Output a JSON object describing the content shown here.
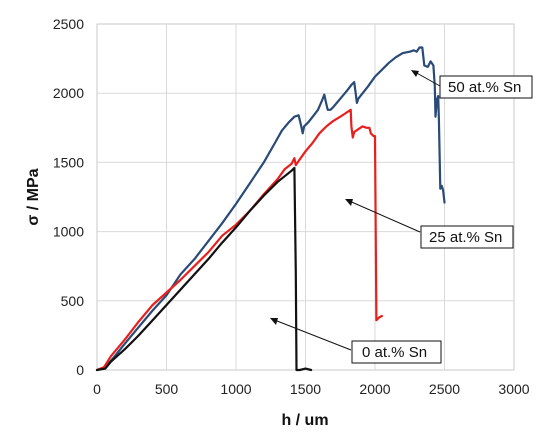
{
  "chart_data": {
    "type": "line",
    "title": "",
    "xlabel": "h / um",
    "ylabel": "σ / MPa",
    "xlim": [
      0,
      3000
    ],
    "ylim": [
      0,
      2500
    ],
    "x_ticks": [
      0,
      500,
      1000,
      1500,
      2000,
      2500,
      3000
    ],
    "y_ticks": [
      0,
      500,
      1000,
      1500,
      2000,
      2500
    ],
    "grid": true,
    "legend": "none",
    "series": [
      {
        "name": "50 at.% Sn",
        "color": "#2a4a78",
        "points": [
          [
            0,
            0
          ],
          [
            60,
            20
          ],
          [
            120,
            90
          ],
          [
            200,
            190
          ],
          [
            300,
            310
          ],
          [
            400,
            430
          ],
          [
            500,
            540
          ],
          [
            600,
            690
          ],
          [
            700,
            800
          ],
          [
            800,
            930
          ],
          [
            900,
            1060
          ],
          [
            1000,
            1200
          ],
          [
            1100,
            1350
          ],
          [
            1200,
            1500
          ],
          [
            1280,
            1640
          ],
          [
            1330,
            1730
          ],
          [
            1380,
            1790
          ],
          [
            1420,
            1830
          ],
          [
            1450,
            1840
          ],
          [
            1470,
            1760
          ],
          [
            1480,
            1710
          ],
          [
            1490,
            1760
          ],
          [
            1520,
            1790
          ],
          [
            1560,
            1840
          ],
          [
            1590,
            1880
          ],
          [
            1620,
            1950
          ],
          [
            1635,
            1990
          ],
          [
            1650,
            1920
          ],
          [
            1660,
            1880
          ],
          [
            1680,
            1880
          ],
          [
            1700,
            1900
          ],
          [
            1750,
            1960
          ],
          [
            1800,
            2020
          ],
          [
            1830,
            2060
          ],
          [
            1850,
            2080
          ],
          [
            1860,
            2010
          ],
          [
            1870,
            1930
          ],
          [
            1880,
            1960
          ],
          [
            1950,
            2050
          ],
          [
            2000,
            2120
          ],
          [
            2100,
            2220
          ],
          [
            2150,
            2260
          ],
          [
            2200,
            2290
          ],
          [
            2250,
            2300
          ],
          [
            2280,
            2310
          ],
          [
            2300,
            2300
          ],
          [
            2320,
            2330
          ],
          [
            2340,
            2330
          ],
          [
            2355,
            2200
          ],
          [
            2380,
            2190
          ],
          [
            2400,
            2230
          ],
          [
            2420,
            2200
          ],
          [
            2430,
            2050
          ],
          [
            2435,
            1830
          ],
          [
            2445,
            1950
          ],
          [
            2455,
            1980
          ],
          [
            2460,
            1810
          ],
          [
            2470,
            1310
          ],
          [
            2480,
            1330
          ],
          [
            2490,
            1300
          ],
          [
            2500,
            1210
          ]
        ]
      },
      {
        "name": "25 at.% Sn",
        "color": "#e8201d",
        "points": [
          [
            0,
            0
          ],
          [
            50,
            20
          ],
          [
            100,
            100
          ],
          [
            200,
            220
          ],
          [
            300,
            350
          ],
          [
            400,
            470
          ],
          [
            500,
            560
          ],
          [
            600,
            650
          ],
          [
            700,
            750
          ],
          [
            800,
            850
          ],
          [
            900,
            970
          ],
          [
            1000,
            1050
          ],
          [
            1100,
            1150
          ],
          [
            1200,
            1270
          ],
          [
            1300,
            1380
          ],
          [
            1350,
            1450
          ],
          [
            1400,
            1490
          ],
          [
            1420,
            1530
          ],
          [
            1430,
            1480
          ],
          [
            1450,
            1510
          ],
          [
            1500,
            1580
          ],
          [
            1550,
            1640
          ],
          [
            1600,
            1710
          ],
          [
            1650,
            1760
          ],
          [
            1700,
            1800
          ],
          [
            1750,
            1830
          ],
          [
            1780,
            1850
          ],
          [
            1810,
            1870
          ],
          [
            1825,
            1880
          ],
          [
            1830,
            1760
          ],
          [
            1840,
            1680
          ],
          [
            1850,
            1720
          ],
          [
            1880,
            1740
          ],
          [
            1910,
            1760
          ],
          [
            1940,
            1750
          ],
          [
            1960,
            1750
          ],
          [
            1970,
            1710
          ],
          [
            1990,
            1690
          ],
          [
            2000,
            1690
          ],
          [
            2005,
            1000
          ],
          [
            2010,
            360
          ],
          [
            2030,
            380
          ],
          [
            2050,
            390
          ]
        ]
      },
      {
        "name": "0 at.% Sn",
        "color": "#111111",
        "points": [
          [
            0,
            0
          ],
          [
            60,
            10
          ],
          [
            100,
            60
          ],
          [
            200,
            150
          ],
          [
            300,
            250
          ],
          [
            400,
            360
          ],
          [
            500,
            470
          ],
          [
            600,
            580
          ],
          [
            700,
            690
          ],
          [
            800,
            800
          ],
          [
            900,
            920
          ],
          [
            1000,
            1030
          ],
          [
            1100,
            1150
          ],
          [
            1200,
            1260
          ],
          [
            1300,
            1360
          ],
          [
            1400,
            1440
          ],
          [
            1420,
            1460
          ],
          [
            1430,
            700
          ],
          [
            1435,
            0
          ],
          [
            1460,
            0
          ],
          [
            1500,
            10
          ],
          [
            1540,
            0
          ]
        ]
      }
    ],
    "annotations": [
      {
        "text": "50 at.% Sn",
        "target_series": "50 at.% Sn"
      },
      {
        "text": "25 at.% Sn",
        "target_series": "25 at.% Sn"
      },
      {
        "text": "0 at.% Sn",
        "target_series": "0 at.% Sn"
      }
    ]
  }
}
